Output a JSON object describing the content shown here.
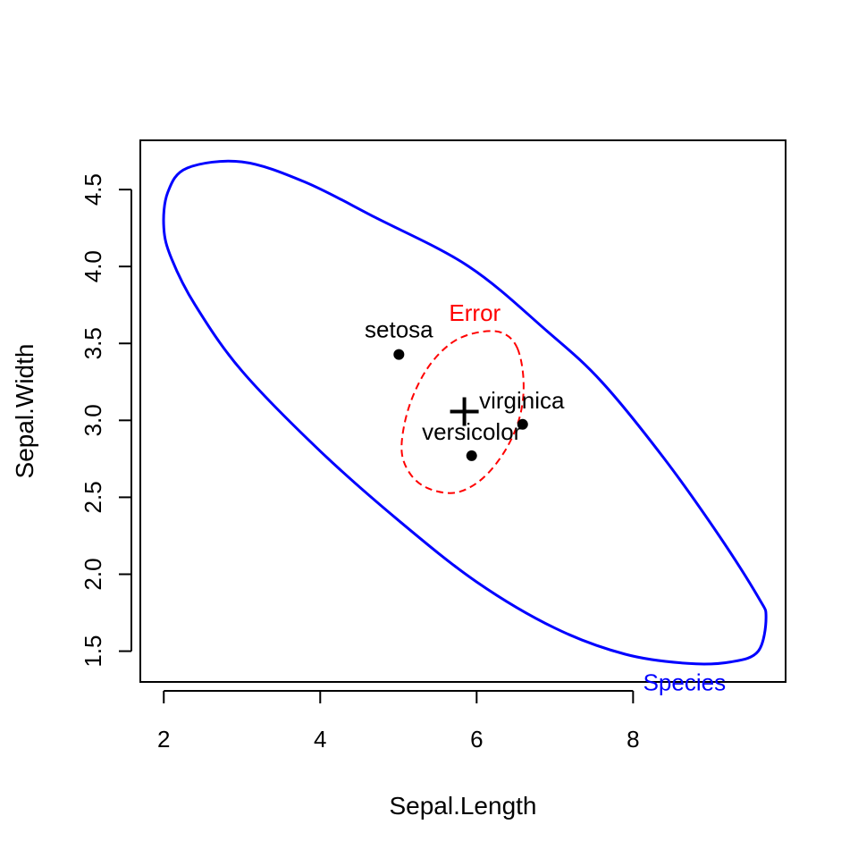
{
  "chart_data": {
    "type": "scatter",
    "title": "",
    "xlabel": "Sepal.Length",
    "ylabel": "Sepal.Width",
    "xlim": [
      1.7,
      9.95
    ],
    "ylim": [
      1.3,
      4.82
    ],
    "xticks": [
      2,
      4,
      6,
      8
    ],
    "yticks": [
      1.5,
      2.0,
      2.5,
      3.0,
      3.5,
      4.0,
      4.5
    ],
    "xtick_labels": [
      "2",
      "4",
      "6",
      "8"
    ],
    "ytick_labels": [
      "1.5",
      "2.0",
      "2.5",
      "3.0",
      "3.5",
      "4.0",
      "4.5"
    ],
    "grid": false,
    "points": [
      {
        "label": "setosa",
        "x": 5.006,
        "y": 3.428
      },
      {
        "label": "versicolor",
        "x": 5.936,
        "y": 2.77
      },
      {
        "label": "virginica",
        "x": 6.588,
        "y": 2.974
      }
    ],
    "grand_mean": {
      "x": 5.843,
      "y": 3.057
    },
    "ellipses": [
      {
        "name": "Error",
        "color": "#ff0000",
        "style": "dashed",
        "points": [
          [
            6.52,
            3.47
          ],
          [
            6.6,
            3.25
          ],
          [
            6.55,
            3.02
          ],
          [
            6.36,
            2.8
          ],
          [
            6.07,
            2.62
          ],
          [
            5.73,
            2.53
          ],
          [
            5.37,
            2.56
          ],
          [
            5.14,
            2.66
          ],
          [
            5.04,
            2.82
          ],
          [
            5.13,
            3.08
          ],
          [
            5.36,
            3.33
          ],
          [
            5.67,
            3.5
          ],
          [
            6.0,
            3.57
          ],
          [
            6.32,
            3.57
          ]
        ]
      },
      {
        "name": "Species",
        "color": "#0000ff",
        "style": "solid",
        "points": [
          [
            2.0,
            4.25
          ],
          [
            2.05,
            4.48
          ],
          [
            2.3,
            4.64
          ],
          [
            3.0,
            4.68
          ],
          [
            3.8,
            4.55
          ],
          [
            4.7,
            4.32
          ],
          [
            5.9,
            4.0
          ],
          [
            6.9,
            3.58
          ],
          [
            7.6,
            3.25
          ],
          [
            8.4,
            2.75
          ],
          [
            9.1,
            2.25
          ],
          [
            9.6,
            1.85
          ],
          [
            9.7,
            1.72
          ],
          [
            9.6,
            1.5
          ],
          [
            9.25,
            1.43
          ],
          [
            8.7,
            1.42
          ],
          [
            7.9,
            1.48
          ],
          [
            7.0,
            1.65
          ],
          [
            6.0,
            1.95
          ],
          [
            5.0,
            2.35
          ],
          [
            4.0,
            2.8
          ],
          [
            3.0,
            3.32
          ],
          [
            2.4,
            3.75
          ],
          [
            2.1,
            4.05
          ]
        ]
      }
    ]
  }
}
